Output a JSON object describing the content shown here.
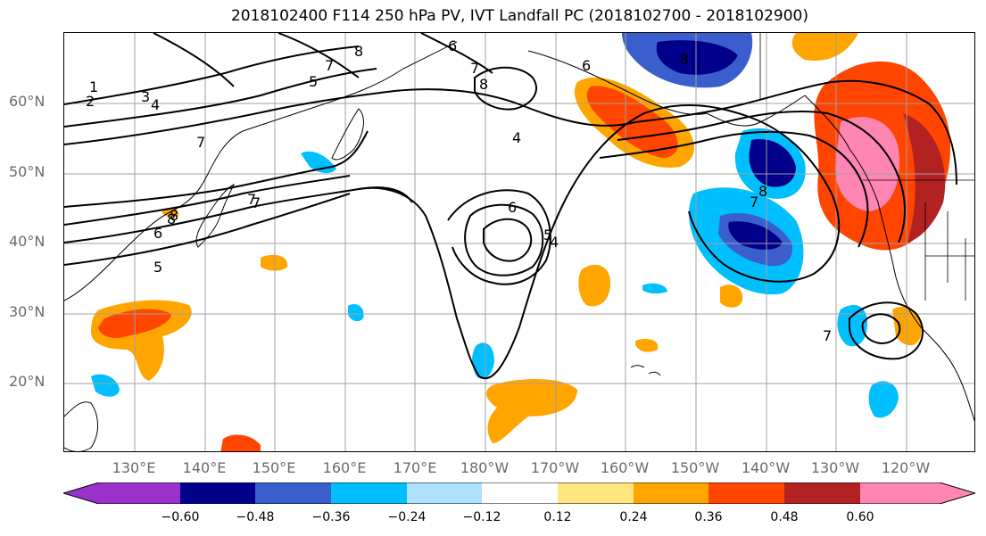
{
  "title": "2018102400 F114 250 hPa PV, IVT Landfall PC (2018102700 - 2018102900)",
  "lat_labels": [
    "60°N",
    "50°N",
    "40°N",
    "30°N",
    "20°N"
  ],
  "lon_labels": [
    "130°E",
    "140°E",
    "150°E",
    "160°E",
    "170°E",
    "180°W",
    "170°W",
    "160°W",
    "150°W",
    "140°W",
    "130°W",
    "120°W"
  ],
  "contour_labels": [
    "1",
    "2",
    "3",
    "4",
    "5",
    "6",
    "7",
    "8",
    "6",
    "5",
    "4",
    "7",
    "8",
    "4",
    "6",
    "8",
    "7",
    "8",
    "7",
    "8",
    "7",
    "5",
    "6",
    "7",
    "8",
    "7"
  ],
  "colorbar": {
    "ticks": [
      "−0.60",
      "−0.48",
      "−0.36",
      "−0.24",
      "−0.12",
      "0.12",
      "0.24",
      "0.36",
      "0.48",
      "0.60"
    ],
    "colors": [
      "#9932cc",
      "#00008b",
      "#3a5fcd",
      "#00bfff",
      "#b0e0ff",
      "#ffffff",
      "#ffe680",
      "#ffa500",
      "#ff4500",
      "#b22222",
      "#ff85b3"
    ]
  },
  "grid": true
}
